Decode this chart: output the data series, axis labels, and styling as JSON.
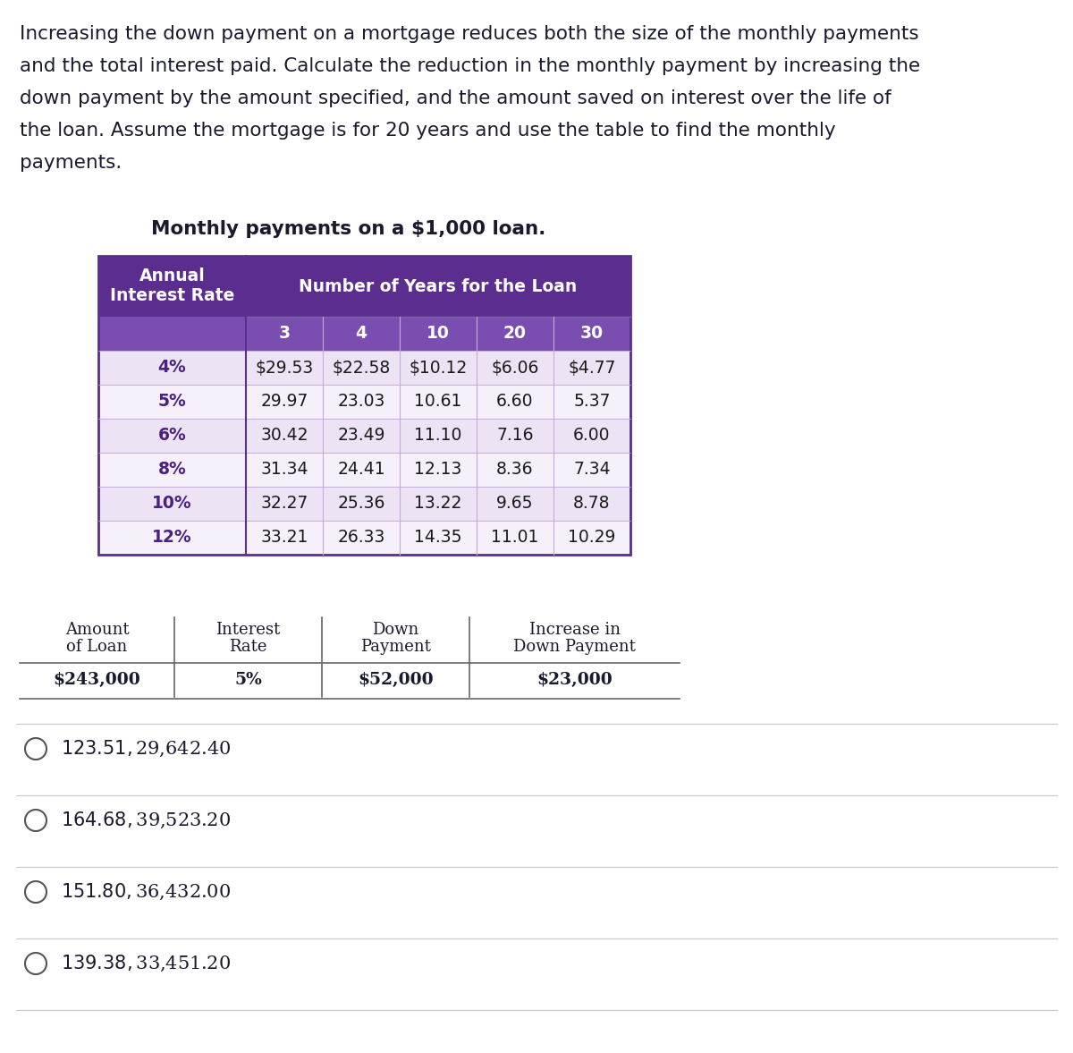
{
  "intro_lines": [
    "Increasing the down payment on a mortgage reduces both the size of the monthly payments",
    "and the total interest paid. Calculate the reduction in the monthly payment by increasing the",
    "down payment by the amount specified, and the amount saved on interest over the life of",
    "the loan. Assume the mortgage is for 20 years and use the table to find the monthly",
    "payments."
  ],
  "table_title": "Monthly payments on a $1,000 loan.",
  "header_row1_left": "Annual\nInterest Rate",
  "header_row1_right": "Number of Years for the Loan",
  "header_row2": [
    "3",
    "4",
    "10",
    "20",
    "30"
  ],
  "interest_rates": [
    "4%",
    "5%",
    "6%",
    "8%",
    "10%",
    "12%"
  ],
  "table_data": [
    [
      "$29.53",
      "$22.58",
      "$10.12",
      "$6.06",
      "$4.77"
    ],
    [
      "29.97",
      "23.03",
      "10.61",
      "6.60",
      "5.37"
    ],
    [
      "30.42",
      "23.49",
      "11.10",
      "7.16",
      "6.00"
    ],
    [
      "31.34",
      "24.41",
      "12.13",
      "8.36",
      "7.34"
    ],
    [
      "32.27",
      "25.36",
      "13.22",
      "9.65",
      "8.78"
    ],
    [
      "33.21",
      "26.33",
      "14.35",
      "11.01",
      "10.29"
    ]
  ],
  "header_bg": "#5b2d8e",
  "subheader_bg": "#7a4eb0",
  "row_bg_light": "#ece4f4",
  "row_bg_lighter": "#f5f0fa",
  "header_text_color": "#ffffff",
  "rate_text_color": "#4a2080",
  "data_text_color": "#1a1a1a",
  "table_border_color": "#5b2d8e",
  "cell_border_color": "#c4aad8",
  "info_col_headers": [
    "Amount\nof Loan",
    "Interest\nRate",
    "Down\nPayment",
    "Increase in\nDown Payment"
  ],
  "info_col_values": [
    "$243,000",
    "5%",
    "$52,000",
    "$23,000"
  ],
  "answer_options": [
    "$123.51, $29,642.40",
    "$164.68, $39,523.20",
    "$151.80, $36,432.00",
    "$139.38, $33,451.20"
  ],
  "bg_color": "#ffffff",
  "text_color": "#1a1a2e",
  "separator_color": "#cccccc",
  "vline_color": "#666666"
}
